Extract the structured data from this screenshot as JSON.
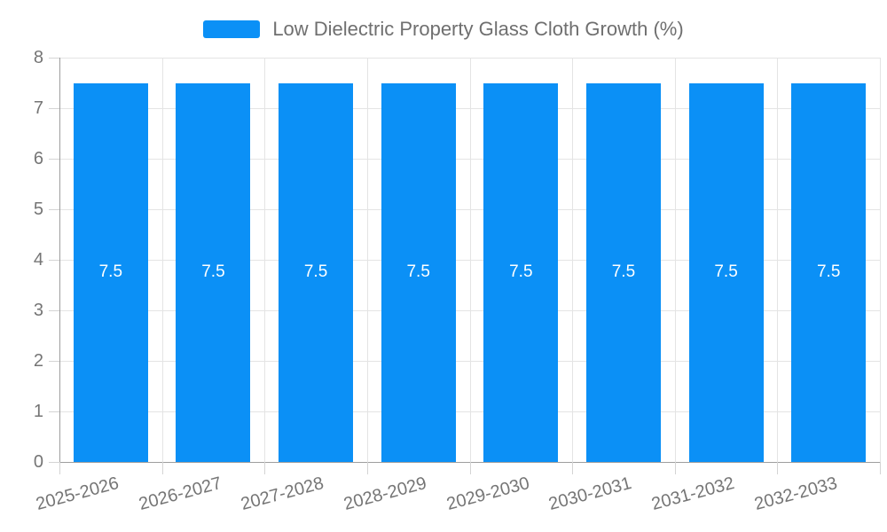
{
  "legend": {
    "label": "Low Dielectric Property Glass Cloth Growth (%)"
  },
  "chart_data": {
    "type": "bar",
    "title": "Low Dielectric Property Glass Cloth Growth (%)",
    "categories": [
      "2025-2026",
      "2026-2027",
      "2027-2028",
      "2028-2029",
      "2029-2030",
      "2030-2031",
      "2031-2032",
      "2032-2033"
    ],
    "series": [
      {
        "name": "Low Dielectric Property Glass Cloth Growth (%)",
        "values": [
          7.5,
          7.5,
          7.5,
          7.5,
          7.5,
          7.5,
          7.5,
          7.5
        ]
      }
    ],
    "bar_labels": [
      "7.5",
      "7.5",
      "7.5",
      "7.5",
      "7.5",
      "7.5",
      "7.5",
      "7.5"
    ],
    "xlabel": "",
    "ylabel": "",
    "ylim": [
      0,
      8
    ],
    "yticks": [
      0,
      1,
      2,
      3,
      4,
      5,
      6,
      7,
      8
    ],
    "grid": true,
    "legend_position": "top-center",
    "colors": {
      "bar": "#0b90f6",
      "grid": "#e4e4e4",
      "axis": "#9e9e9e",
      "tick": "#d4d4d4",
      "text": "#757575",
      "bar_label": "#ffffff"
    }
  }
}
